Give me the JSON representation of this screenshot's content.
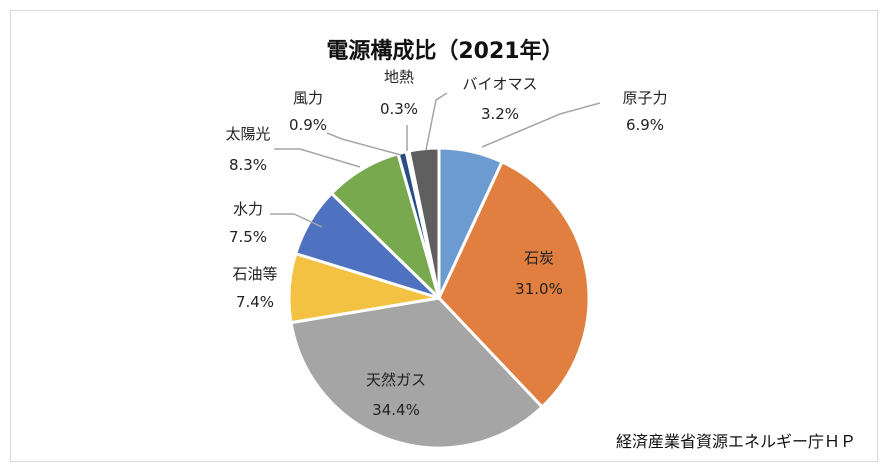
{
  "chart_data": {
    "type": "pie",
    "title": "電源構成比（2021年）",
    "source": "経済産業省資源エネルギー庁ＨＰ",
    "slices": [
      {
        "name": "原子力",
        "value": 6.9,
        "value_label": "6.9%",
        "color": "#6b9bd1"
      },
      {
        "name": "石炭",
        "value": 31.0,
        "value_label": "31.0%",
        "color": "#e07f3f"
      },
      {
        "name": "天然ガス",
        "value": 34.4,
        "value_label": "34.4%",
        "color": "#a5a5a5"
      },
      {
        "name": "石油等",
        "value": 7.4,
        "value_label": "7.4%",
        "color": "#f4c242"
      },
      {
        "name": "水力",
        "value": 7.5,
        "value_label": "7.5%",
        "color": "#4f72c0"
      },
      {
        "name": "太陽光",
        "value": 8.3,
        "value_label": "8.3%",
        "color": "#78a94f"
      },
      {
        "name": "風力",
        "value": 0.9,
        "value_label": "0.9%",
        "color": "#254f86"
      },
      {
        "name": "地熱",
        "value": 0.3,
        "value_label": "0.3%",
        "color": "#8a5524"
      },
      {
        "name": "バイオマス",
        "value": 3.2,
        "value_label": "3.2%",
        "color": "#5f5f5f"
      }
    ]
  }
}
